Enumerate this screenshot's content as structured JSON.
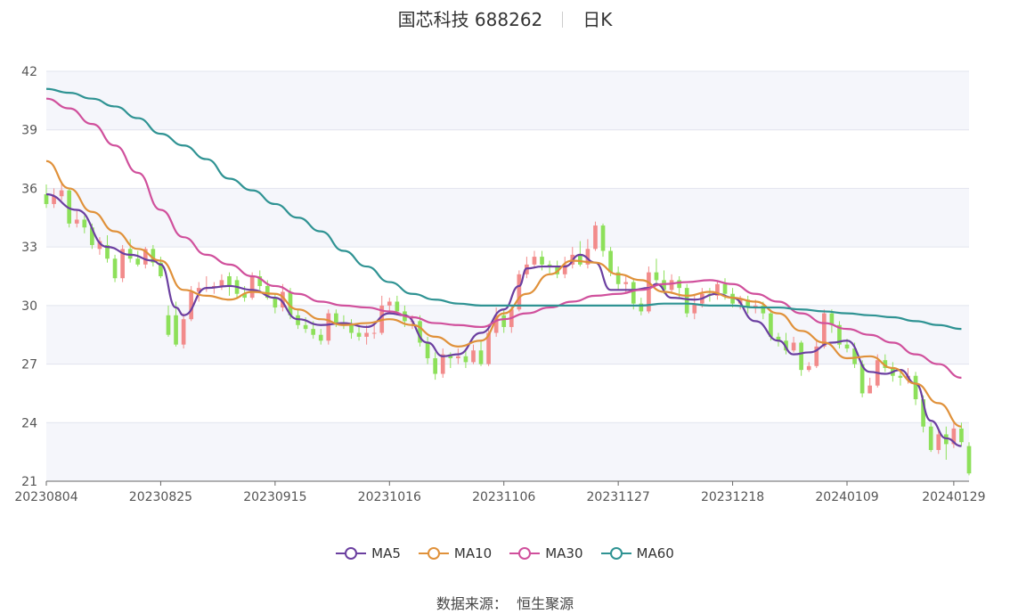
{
  "header": {
    "stock": "国芯科技 688262",
    "period": "日K"
  },
  "source": {
    "label": "数据来源：",
    "value": "恒生聚源"
  },
  "colors": {
    "up": "#f28b8b",
    "down": "#8de05a",
    "MA5": "#6b3fa0",
    "MA10": "#e0913a",
    "MA30": "#d0509c",
    "MA60": "#2f9393"
  },
  "chart_data": {
    "type": "candlestick",
    "ylim": [
      21,
      42
    ],
    "yticks": [
      21,
      24,
      27,
      30,
      33,
      36,
      39,
      42
    ],
    "xticks": [
      "20230804",
      "20230825",
      "20230915",
      "20231016",
      "20231106",
      "20231127",
      "20231218",
      "20240109",
      "20240129"
    ],
    "xtick_index": [
      0,
      15,
      30,
      45,
      60,
      75,
      90,
      105,
      119
    ],
    "candles": [
      [
        35.7,
        35.2,
        36.2,
        35.0
      ],
      [
        35.2,
        35.6,
        36.0,
        35.0
      ],
      [
        35.6,
        35.9,
        36.3,
        35.4
      ],
      [
        35.9,
        34.2,
        36.0,
        34.0
      ],
      [
        34.2,
        34.4,
        34.9,
        34.0
      ],
      [
        34.4,
        34.0,
        34.6,
        33.7
      ],
      [
        34.0,
        33.1,
        34.2,
        32.9
      ],
      [
        32.9,
        33.3,
        33.5,
        32.6
      ],
      [
        33.1,
        32.4,
        33.6,
        32.2
      ],
      [
        32.4,
        31.4,
        32.6,
        31.2
      ],
      [
        31.4,
        32.9,
        33.1,
        31.2
      ],
      [
        32.9,
        32.4,
        33.4,
        32.2
      ],
      [
        32.4,
        32.1,
        32.8,
        32.0
      ],
      [
        32.1,
        32.9,
        33.0,
        31.9
      ],
      [
        32.9,
        32.2,
        33.1,
        32.0
      ],
      [
        32.2,
        31.5,
        32.5,
        31.4
      ],
      [
        29.5,
        28.5,
        30.0,
        28.4
      ],
      [
        29.5,
        28.0,
        30.2,
        27.9
      ],
      [
        28.0,
        29.3,
        29.6,
        27.8
      ],
      [
        29.3,
        30.7,
        31.0,
        29.2
      ],
      [
        30.7,
        30.9,
        31.2,
        30.2
      ],
      [
        30.9,
        30.9,
        31.5,
        30.7
      ],
      [
        30.9,
        31.0,
        31.2,
        30.6
      ],
      [
        31.0,
        31.3,
        31.6,
        30.8
      ],
      [
        31.5,
        31.0,
        31.7,
        30.5
      ],
      [
        31.3,
        30.6,
        31.5,
        30.4
      ],
      [
        30.6,
        30.4,
        31.0,
        30.2
      ],
      [
        30.4,
        31.5,
        31.7,
        30.3
      ],
      [
        31.5,
        31.0,
        31.8,
        30.8
      ],
      [
        31.0,
        30.4,
        31.3,
        30.3
      ],
      [
        30.4,
        29.9,
        30.6,
        29.6
      ],
      [
        29.9,
        30.7,
        31.1,
        29.7
      ],
      [
        30.7,
        29.5,
        30.9,
        29.3
      ],
      [
        29.5,
        29.0,
        29.8,
        28.8
      ],
      [
        29.0,
        28.8,
        29.4,
        28.6
      ],
      [
        28.8,
        28.5,
        29.2,
        28.3
      ],
      [
        28.5,
        28.2,
        28.8,
        28.0
      ],
      [
        28.2,
        29.6,
        29.8,
        28.0
      ],
      [
        29.6,
        29.1,
        29.8,
        28.9
      ],
      [
        29.1,
        29.0,
        29.5,
        28.8
      ],
      [
        29.0,
        28.6,
        29.3,
        28.3
      ],
      [
        28.6,
        28.4,
        29.0,
        28.2
      ],
      [
        28.4,
        28.6,
        29.0,
        28.0
      ],
      [
        28.6,
        28.6,
        29.0,
        28.3
      ],
      [
        28.6,
        30.0,
        30.5,
        28.5
      ],
      [
        30.0,
        30.2,
        30.4,
        29.6
      ],
      [
        30.2,
        29.7,
        30.5,
        29.5
      ],
      [
        29.7,
        29.2,
        30.0,
        28.9
      ],
      [
        29.2,
        29.2,
        29.5,
        28.8
      ],
      [
        29.2,
        28.1,
        29.5,
        27.9
      ],
      [
        28.1,
        27.3,
        28.4,
        27.0
      ],
      [
        27.3,
        26.5,
        27.6,
        26.2
      ],
      [
        26.5,
        27.5,
        27.8,
        26.3
      ],
      [
        27.5,
        27.3,
        27.6,
        26.8
      ],
      [
        27.3,
        27.4,
        27.8,
        27.0
      ],
      [
        27.4,
        27.1,
        27.7,
        26.8
      ],
      [
        27.1,
        27.7,
        28.0,
        27.0
      ],
      [
        27.7,
        27.0,
        28.2,
        26.9
      ],
      [
        27.0,
        28.6,
        29.0,
        26.9
      ],
      [
        28.6,
        29.5,
        29.9,
        28.4
      ],
      [
        29.5,
        28.9,
        29.8,
        28.6
      ],
      [
        28.9,
        29.8,
        30.0,
        28.6
      ],
      [
        29.8,
        31.6,
        31.8,
        29.7
      ],
      [
        31.6,
        32.1,
        32.5,
        31.4
      ],
      [
        32.1,
        32.5,
        32.8,
        31.9
      ],
      [
        32.5,
        32.1,
        32.8,
        31.8
      ],
      [
        32.1,
        32.0,
        32.3,
        31.6
      ],
      [
        32.0,
        31.6,
        32.3,
        31.4
      ],
      [
        31.6,
        32.1,
        32.5,
        31.4
      ],
      [
        32.1,
        32.6,
        33.0,
        31.9
      ],
      [
        32.6,
        32.1,
        33.3,
        32.0
      ],
      [
        32.1,
        32.9,
        33.4,
        31.9
      ],
      [
        32.9,
        34.1,
        34.3,
        32.8
      ],
      [
        34.1,
        32.8,
        34.2,
        32.5
      ],
      [
        32.8,
        31.7,
        33.0,
        31.5
      ],
      [
        31.7,
        31.1,
        32.0,
        30.8
      ],
      [
        31.1,
        31.2,
        31.5,
        30.7
      ],
      [
        31.2,
        30.1,
        31.4,
        29.8
      ],
      [
        30.1,
        29.7,
        30.4,
        29.5
      ],
      [
        29.7,
        31.7,
        32.0,
        29.6
      ],
      [
        31.7,
        31.3,
        32.4,
        31.1
      ],
      [
        31.3,
        30.8,
        31.8,
        30.6
      ],
      [
        30.8,
        31.3,
        31.6,
        30.6
      ],
      [
        31.3,
        30.9,
        31.5,
        30.4
      ],
      [
        30.9,
        29.6,
        31.1,
        29.4
      ],
      [
        29.6,
        30.1,
        30.5,
        29.3
      ],
      [
        30.1,
        30.6,
        30.9,
        29.9
      ],
      [
        30.6,
        30.5,
        30.9,
        30.2
      ],
      [
        30.5,
        31.1,
        31.3,
        30.3
      ],
      [
        31.1,
        30.6,
        31.4,
        30.3
      ],
      [
        30.6,
        30.1,
        30.9,
        29.9
      ],
      [
        30.1,
        30.3,
        30.5,
        29.8
      ],
      [
        30.3,
        29.9,
        30.5,
        29.6
      ],
      [
        29.9,
        30.0,
        30.3,
        29.6
      ],
      [
        30.0,
        29.6,
        30.2,
        29.3
      ],
      [
        29.6,
        28.4,
        29.8,
        28.2
      ],
      [
        28.4,
        28.2,
        28.6,
        27.9
      ],
      [
        28.2,
        27.7,
        28.6,
        27.5
      ],
      [
        27.7,
        28.1,
        28.4,
        27.6
      ],
      [
        28.1,
        26.7,
        28.2,
        26.4
      ],
      [
        26.7,
        26.9,
        27.1,
        26.6
      ],
      [
        26.9,
        27.9,
        28.2,
        26.8
      ],
      [
        27.9,
        29.6,
        29.8,
        27.8
      ],
      [
        29.6,
        29.0,
        29.8,
        28.6
      ],
      [
        29.0,
        28.0,
        29.2,
        27.8
      ],
      [
        28.0,
        27.8,
        28.3,
        27.6
      ],
      [
        27.8,
        27.0,
        28.1,
        26.8
      ],
      [
        27.0,
        25.5,
        27.2,
        25.3
      ],
      [
        25.5,
        25.9,
        26.3,
        25.5
      ],
      [
        25.9,
        27.2,
        27.5,
        25.8
      ],
      [
        27.2,
        26.8,
        27.5,
        26.6
      ],
      [
        26.8,
        26.4,
        27.1,
        26.1
      ],
      [
        26.4,
        26.3,
        26.7,
        25.9
      ],
      [
        26.3,
        26.4,
        26.8,
        26.0
      ],
      [
        26.4,
        25.2,
        26.6,
        24.9
      ],
      [
        25.2,
        23.8,
        25.4,
        23.5
      ],
      [
        23.8,
        22.6,
        24.0,
        22.5
      ],
      [
        22.6,
        23.4,
        23.7,
        22.4
      ],
      [
        23.4,
        22.9,
        23.8,
        22.1
      ],
      [
        22.9,
        23.7,
        24.0,
        22.7
      ],
      [
        23.7,
        23.0,
        24.0,
        22.8
      ],
      [
        22.8,
        21.4,
        23.0,
        21.3
      ]
    ],
    "ma": {
      "MA5": [
        [
          0,
          35.7
        ],
        [
          4,
          34.9
        ],
        [
          8,
          33.0
        ],
        [
          11,
          32.6
        ],
        [
          14,
          32.3
        ],
        [
          15,
          32.1
        ],
        [
          17,
          29.9
        ],
        [
          18,
          29.5
        ],
        [
          21,
          30.9
        ],
        [
          24,
          31.0
        ],
        [
          27,
          30.8
        ],
        [
          30,
          30.4
        ],
        [
          33,
          29.3
        ],
        [
          36,
          29.0
        ],
        [
          39,
          29.1
        ],
        [
          42,
          28.9
        ],
        [
          45,
          29.6
        ],
        [
          47,
          29.5
        ],
        [
          50,
          28.1
        ],
        [
          52,
          27.4
        ],
        [
          54,
          27.5
        ],
        [
          57,
          28.6
        ],
        [
          60,
          29.8
        ],
        [
          62,
          31.0
        ],
        [
          63,
          31.9
        ],
        [
          65,
          32.0
        ],
        [
          68,
          32.0
        ],
        [
          70,
          32.6
        ],
        [
          72,
          32.2
        ],
        [
          74,
          30.8
        ],
        [
          77,
          30.8
        ],
        [
          79,
          30.9
        ],
        [
          80,
          31.1
        ],
        [
          82,
          30.4
        ],
        [
          85,
          30.3
        ],
        [
          88,
          30.6
        ],
        [
          90,
          30.4
        ],
        [
          93,
          29.2
        ],
        [
          96,
          28.2
        ],
        [
          98,
          27.5
        ],
        [
          100,
          27.6
        ],
        [
          103,
          28.1
        ],
        [
          105,
          28.2
        ],
        [
          108,
          26.6
        ],
        [
          110,
          26.5
        ],
        [
          112,
          26.7
        ],
        [
          114,
          26.0
        ],
        [
          116,
          24.1
        ],
        [
          118,
          23.2
        ],
        [
          120,
          22.8
        ]
      ],
      "MA10": [
        [
          0,
          37.4
        ],
        [
          3,
          36.0
        ],
        [
          6,
          34.8
        ],
        [
          9,
          33.8
        ],
        [
          12,
          32.9
        ],
        [
          15,
          32.3
        ],
        [
          18,
          30.8
        ],
        [
          21,
          30.5
        ],
        [
          24,
          30.3
        ],
        [
          27,
          30.7
        ],
        [
          30,
          30.6
        ],
        [
          33,
          29.8
        ],
        [
          36,
          29.3
        ],
        [
          39,
          29.0
        ],
        [
          42,
          29.1
        ],
        [
          45,
          29.3
        ],
        [
          48,
          29.0
        ],
        [
          51,
          28.4
        ],
        [
          54,
          27.9
        ],
        [
          57,
          28.2
        ],
        [
          60,
          29.6
        ],
        [
          63,
          30.6
        ],
        [
          66,
          31.6
        ],
        [
          69,
          32.3
        ],
        [
          72,
          32.2
        ],
        [
          75,
          31.6
        ],
        [
          78,
          31.3
        ],
        [
          81,
          30.7
        ],
        [
          84,
          30.5
        ],
        [
          87,
          30.7
        ],
        [
          90,
          30.4
        ],
        [
          93,
          30.2
        ],
        [
          96,
          29.6
        ],
        [
          99,
          28.7
        ],
        [
          102,
          28.1
        ],
        [
          105,
          27.3
        ],
        [
          108,
          27.4
        ],
        [
          111,
          26.8
        ],
        [
          114,
          26.0
        ],
        [
          117,
          25.0
        ],
        [
          120,
          23.8
        ]
      ],
      "MA30": [
        [
          0,
          40.6
        ],
        [
          3,
          40.1
        ],
        [
          6,
          39.3
        ],
        [
          9,
          38.2
        ],
        [
          12,
          36.8
        ],
        [
          15,
          34.9
        ],
        [
          18,
          33.5
        ],
        [
          21,
          32.6
        ],
        [
          24,
          32.1
        ],
        [
          27,
          31.5
        ],
        [
          30,
          31.0
        ],
        [
          33,
          30.6
        ],
        [
          36,
          30.2
        ],
        [
          39,
          30.0
        ],
        [
          42,
          29.9
        ],
        [
          45,
          29.7
        ],
        [
          48,
          29.4
        ],
        [
          51,
          29.1
        ],
        [
          54,
          29.0
        ],
        [
          57,
          28.9
        ],
        [
          60,
          29.3
        ],
        [
          63,
          29.6
        ],
        [
          66,
          29.9
        ],
        [
          69,
          30.2
        ],
        [
          72,
          30.5
        ],
        [
          75,
          30.6
        ],
        [
          78,
          30.8
        ],
        [
          81,
          31.1
        ],
        [
          84,
          31.2
        ],
        [
          87,
          31.3
        ],
        [
          90,
          31.1
        ],
        [
          93,
          30.6
        ],
        [
          96,
          30.2
        ],
        [
          99,
          29.6
        ],
        [
          102,
          29.1
        ],
        [
          105,
          28.8
        ],
        [
          108,
          28.5
        ],
        [
          111,
          28.1
        ],
        [
          114,
          27.5
        ],
        [
          117,
          27.0
        ],
        [
          120,
          26.3
        ]
      ],
      "MA60": [
        [
          0,
          41.1
        ],
        [
          3,
          40.9
        ],
        [
          6,
          40.6
        ],
        [
          9,
          40.2
        ],
        [
          12,
          39.6
        ],
        [
          15,
          38.8
        ],
        [
          18,
          38.2
        ],
        [
          21,
          37.5
        ],
        [
          24,
          36.5
        ],
        [
          27,
          35.9
        ],
        [
          30,
          35.2
        ],
        [
          33,
          34.5
        ],
        [
          36,
          33.8
        ],
        [
          39,
          32.8
        ],
        [
          42,
          32.0
        ],
        [
          45,
          31.2
        ],
        [
          48,
          30.6
        ],
        [
          51,
          30.3
        ],
        [
          54,
          30.1
        ],
        [
          57,
          30.0
        ],
        [
          60,
          30.0
        ],
        [
          63,
          30.0
        ],
        [
          66,
          30.0
        ],
        [
          69,
          30.0
        ],
        [
          72,
          30.0
        ],
        [
          75,
          30.0
        ],
        [
          78,
          30.0
        ],
        [
          81,
          30.1
        ],
        [
          84,
          30.1
        ],
        [
          87,
          30.0
        ],
        [
          90,
          30.0
        ],
        [
          93,
          29.9
        ],
        [
          96,
          29.9
        ],
        [
          99,
          29.8
        ],
        [
          102,
          29.7
        ],
        [
          105,
          29.6
        ],
        [
          108,
          29.5
        ],
        [
          111,
          29.4
        ],
        [
          114,
          29.2
        ],
        [
          117,
          29.0
        ],
        [
          120,
          28.8
        ]
      ]
    },
    "legend": [
      "MA5",
      "MA10",
      "MA30",
      "MA60"
    ],
    "legend_position": "bottom",
    "grid": true
  }
}
